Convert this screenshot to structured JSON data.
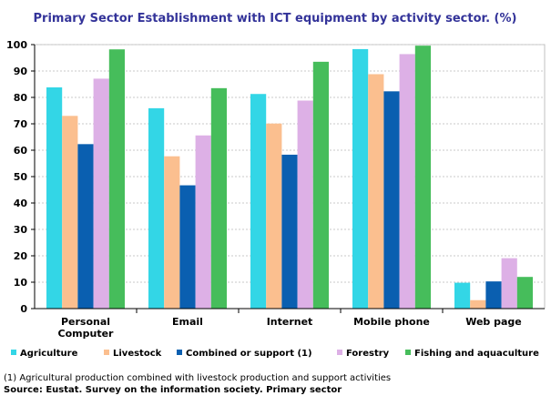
{
  "chart_data": {
    "type": "bar",
    "title": "Primary Sector Establishment with ICT equipment by activity sector. (%)",
    "xlabel": "",
    "ylabel": "",
    "ylim": [
      0,
      100
    ],
    "yticks": [
      0,
      10,
      20,
      30,
      40,
      50,
      60,
      70,
      80,
      90,
      100
    ],
    "categories": [
      [
        "Personal",
        "Computer"
      ],
      [
        "Email"
      ],
      [
        "Internet"
      ],
      [
        "Mobile phone"
      ],
      [
        "Web page"
      ]
    ],
    "series": [
      {
        "name": "Agriculture",
        "color": "#33d6e6",
        "values": [
          83.8,
          75.9,
          81.3,
          98.3,
          9.8
        ]
      },
      {
        "name": "Livestock",
        "color": "#fbbf8f",
        "values": [
          73.0,
          57.7,
          70.1,
          88.8,
          3.2
        ]
      },
      {
        "name": "Combined or support (1)",
        "color": "#0a5fb0",
        "values": [
          62.3,
          46.7,
          58.3,
          82.3,
          10.3
        ]
      },
      {
        "name": "Forestry",
        "color": "#ddb0e6",
        "values": [
          87.1,
          65.6,
          78.8,
          96.4,
          19.1
        ]
      },
      {
        "name": "Fishing and aquaculture",
        "color": "#46bd5b",
        "values": [
          98.2,
          83.5,
          93.5,
          99.6,
          12.0
        ]
      }
    ],
    "grid": true,
    "legend_position": "bottom"
  },
  "footnote": "(1)  Agricultural production combined with livestock production and support activities",
  "source": "Source: Eustat.  Survey on the information society. Primary sector",
  "colors": {
    "title": "#333399",
    "axis": "#000000",
    "grid": "#c8c8c8",
    "plot_border": "#c0c0c0"
  }
}
